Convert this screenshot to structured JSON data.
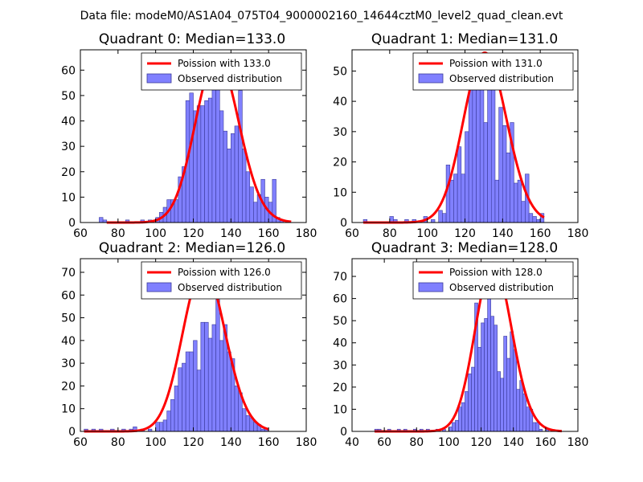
{
  "figure": {
    "suptitle": "Data file: modeM0/AS1A04_075T04_9000002160_14644cztM0_level2_quad_clean.evt"
  },
  "colors": {
    "line": "#ff0000",
    "bar_fill": "#8080ff",
    "bar_edge": "#3a3a9a"
  },
  "chart_data": [
    {
      "type": "bar",
      "title": "Quadrant 0: Median=133.0",
      "legend": {
        "line_label": "Poission with 133.0",
        "bar_label": "Observed distribution",
        "placement": "top-right"
      },
      "xlim": [
        60,
        180
      ],
      "ylim": [
        0,
        68
      ],
      "xticks": [
        60,
        80,
        100,
        120,
        140,
        160,
        180
      ],
      "yticks": [
        0,
        10,
        20,
        30,
        40,
        50,
        60
      ],
      "bin_width": 2,
      "bins": [
        [
          70,
          2
        ],
        [
          72,
          1
        ],
        [
          84,
          1
        ],
        [
          92,
          1
        ],
        [
          96,
          1
        ],
        [
          100,
          2
        ],
        [
          102,
          4
        ],
        [
          104,
          6
        ],
        [
          106,
          9
        ],
        [
          108,
          9
        ],
        [
          110,
          9
        ],
        [
          112,
          18
        ],
        [
          114,
          22
        ],
        [
          116,
          48
        ],
        [
          118,
          51
        ],
        [
          120,
          44
        ],
        [
          122,
          46
        ],
        [
          124,
          46
        ],
        [
          126,
          48
        ],
        [
          128,
          49
        ],
        [
          130,
          56
        ],
        [
          132,
          64
        ],
        [
          134,
          44
        ],
        [
          136,
          36
        ],
        [
          138,
          29
        ],
        [
          140,
          35
        ],
        [
          142,
          38
        ],
        [
          144,
          52
        ],
        [
          146,
          29
        ],
        [
          148,
          20
        ],
        [
          150,
          14
        ],
        [
          152,
          8
        ],
        [
          154,
          11
        ],
        [
          156,
          17
        ],
        [
          158,
          10
        ],
        [
          160,
          8
        ],
        [
          162,
          17
        ],
        [
          164,
          2
        ],
        [
          166,
          1
        ]
      ],
      "poisson": {
        "mean": 133.0,
        "x_range": [
          74,
          172
        ],
        "peak": 65
      }
    },
    {
      "type": "bar",
      "title": "Quadrant 1: Median=131.0",
      "legend": {
        "line_label": "Poission with 131.0",
        "bar_label": "Observed distribution",
        "placement": "top-right"
      },
      "xlim": [
        60,
        180
      ],
      "ylim": [
        0,
        57
      ],
      "xticks": [
        60,
        80,
        100,
        120,
        140,
        160,
        180
      ],
      "yticks": [
        0,
        10,
        20,
        30,
        40,
        50
      ],
      "bin_width": 2,
      "bins": [
        [
          66,
          1
        ],
        [
          80,
          2
        ],
        [
          82,
          1
        ],
        [
          88,
          1
        ],
        [
          92,
          1
        ],
        [
          98,
          2
        ],
        [
          102,
          1
        ],
        [
          106,
          4
        ],
        [
          108,
          3
        ],
        [
          110,
          19
        ],
        [
          112,
          14
        ],
        [
          114,
          16
        ],
        [
          116,
          25
        ],
        [
          118,
          16
        ],
        [
          120,
          30
        ],
        [
          122,
          45
        ],
        [
          124,
          52
        ],
        [
          126,
          50
        ],
        [
          128,
          49
        ],
        [
          130,
          33
        ],
        [
          132,
          49
        ],
        [
          134,
          49
        ],
        [
          136,
          14
        ],
        [
          138,
          38
        ],
        [
          140,
          32
        ],
        [
          142,
          23
        ],
        [
          144,
          33
        ],
        [
          146,
          13
        ],
        [
          148,
          14
        ],
        [
          150,
          7
        ],
        [
          152,
          16
        ],
        [
          154,
          3
        ],
        [
          156,
          2
        ],
        [
          158,
          1
        ],
        [
          160,
          3
        ]
      ],
      "poisson": {
        "mean": 131.0,
        "x_range": [
          66,
          162
        ],
        "peak": 56
      }
    },
    {
      "type": "bar",
      "title": "Quadrant 2: Median=126.0",
      "legend": {
        "line_label": "Poission with 126.0",
        "bar_label": "Observed distribution",
        "placement": "top-right"
      },
      "xlim": [
        60,
        180
      ],
      "ylim": [
        0,
        76
      ],
      "xticks": [
        60,
        80,
        100,
        120,
        140,
        160,
        180
      ],
      "yticks": [
        0,
        10,
        20,
        30,
        40,
        50,
        60,
        70
      ],
      "bin_width": 2,
      "bins": [
        [
          62,
          1
        ],
        [
          66,
          1
        ],
        [
          70,
          1
        ],
        [
          76,
          1
        ],
        [
          82,
          1
        ],
        [
          86,
          1
        ],
        [
          88,
          2
        ],
        [
          92,
          1
        ],
        [
          96,
          1
        ],
        [
          100,
          4
        ],
        [
          102,
          4
        ],
        [
          104,
          5
        ],
        [
          106,
          9
        ],
        [
          108,
          14
        ],
        [
          110,
          20
        ],
        [
          112,
          28
        ],
        [
          114,
          30
        ],
        [
          116,
          35
        ],
        [
          118,
          35
        ],
        [
          120,
          40
        ],
        [
          122,
          27
        ],
        [
          124,
          48
        ],
        [
          126,
          48
        ],
        [
          128,
          41
        ],
        [
          130,
          47
        ],
        [
          132,
          58
        ],
        [
          134,
          40
        ],
        [
          136,
          47
        ],
        [
          138,
          35
        ],
        [
          140,
          32
        ],
        [
          142,
          20
        ],
        [
          144,
          17
        ],
        [
          146,
          10
        ],
        [
          148,
          7
        ],
        [
          150,
          6
        ],
        [
          152,
          4
        ],
        [
          154,
          3
        ],
        [
          156,
          1
        ],
        [
          158,
          1
        ]
      ],
      "poisson": {
        "mean": 126.0,
        "x_range": [
          62,
          160
        ],
        "peak": 72
      }
    },
    {
      "type": "bar",
      "title": "Quadrant 3: Median=128.0",
      "legend": {
        "line_label": "Poission with 128.0",
        "bar_label": "Observed distribution",
        "placement": "top-right"
      },
      "xlim": [
        40,
        180
      ],
      "ylim": [
        0,
        78
      ],
      "xticks": [
        40,
        60,
        80,
        100,
        120,
        140,
        160,
        180
      ],
      "yticks": [
        0,
        10,
        20,
        30,
        40,
        50,
        60,
        70
      ],
      "bin_width": 2,
      "bins": [
        [
          54,
          1
        ],
        [
          56,
          1
        ],
        [
          62,
          1
        ],
        [
          68,
          1
        ],
        [
          72,
          1
        ],
        [
          78,
          1
        ],
        [
          82,
          1
        ],
        [
          86,
          1
        ],
        [
          92,
          1
        ],
        [
          96,
          1
        ],
        [
          100,
          2
        ],
        [
          102,
          4
        ],
        [
          104,
          5
        ],
        [
          106,
          11
        ],
        [
          108,
          13
        ],
        [
          110,
          18
        ],
        [
          112,
          26
        ],
        [
          114,
          29
        ],
        [
          116,
          58
        ],
        [
          118,
          38
        ],
        [
          120,
          49
        ],
        [
          122,
          51
        ],
        [
          124,
          66
        ],
        [
          126,
          52
        ],
        [
          128,
          48
        ],
        [
          130,
          27
        ],
        [
          132,
          24
        ],
        [
          134,
          43
        ],
        [
          136,
          33
        ],
        [
          138,
          45
        ],
        [
          140,
          37
        ],
        [
          142,
          19
        ],
        [
          144,
          23
        ],
        [
          146,
          17
        ],
        [
          148,
          11
        ],
        [
          150,
          10
        ],
        [
          152,
          4
        ],
        [
          154,
          4
        ],
        [
          156,
          1
        ],
        [
          160,
          1
        ]
      ],
      "poisson": {
        "mean": 128.0,
        "x_range": [
          54,
          170
        ],
        "peak": 76
      }
    }
  ]
}
